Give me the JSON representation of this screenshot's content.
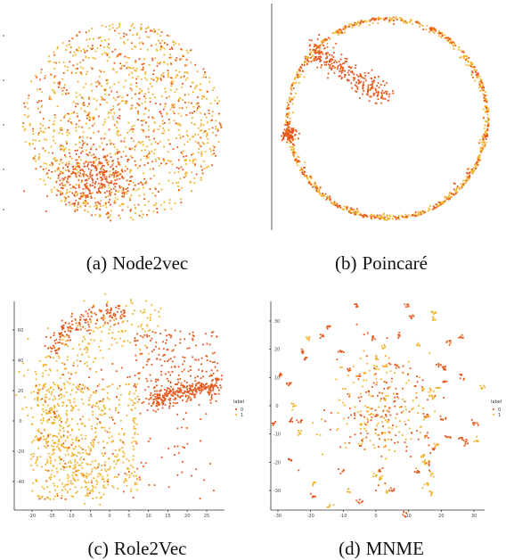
{
  "figure": {
    "colors": {
      "label_0": "#e8561a",
      "label_1": "#f2b32a",
      "axis": "#333333"
    },
    "panels": [
      {
        "id": "a",
        "caption_label": "(a)",
        "caption_text": "Node2vec",
        "chart_data": {
          "type": "scatter",
          "title": "",
          "xlabel": "",
          "ylabel": "",
          "legend": null,
          "point_count_0": 700,
          "point_count_1": 900,
          "layout_shape": "disk",
          "x_ticks": [],
          "y_ticks": []
        }
      },
      {
        "id": "b",
        "caption_label": "(b)",
        "caption_text": "Poincaré",
        "chart_data": {
          "type": "scatter",
          "title": "",
          "xlabel": "",
          "ylabel": "",
          "legend": null,
          "point_count_0": 650,
          "point_count_1": 650,
          "layout_shape": "ring",
          "x_ticks": [],
          "y_ticks": []
        }
      },
      {
        "id": "c",
        "caption_label": "(c)",
        "caption_text": "Role2Vec",
        "chart_data": {
          "type": "scatter",
          "title": "",
          "xlabel": "",
          "ylabel": "",
          "legend": {
            "title": "label",
            "entries": [
              "0",
              "1"
            ],
            "placement": "right"
          },
          "point_count_0": 750,
          "point_count_1": 850,
          "layout_shape": "crescent",
          "x_ticks": [
            "-20",
            "-15",
            "-10",
            "-5",
            "0",
            "5",
            "10",
            "15",
            "20",
            "25"
          ],
          "y_ticks": [
            "60",
            "40",
            "20",
            "0",
            "-20",
            "-40"
          ]
        }
      },
      {
        "id": "d",
        "caption_label": "(d)",
        "caption_text": "MNME",
        "chart_data": {
          "type": "scatter",
          "title": "",
          "xlabel": "",
          "ylabel": "",
          "legend": {
            "title": "label",
            "entries": [
              "0",
              "1"
            ],
            "placement": "right"
          },
          "point_count_0": 550,
          "point_count_1": 450,
          "layout_shape": "clusters",
          "x_ticks": [
            "-30",
            "-20",
            "-10",
            "0",
            "10",
            "20",
            "30"
          ],
          "y_ticks": [
            "30",
            "20",
            "10",
            "0",
            "-10",
            "-20",
            "-30"
          ]
        }
      }
    ]
  }
}
